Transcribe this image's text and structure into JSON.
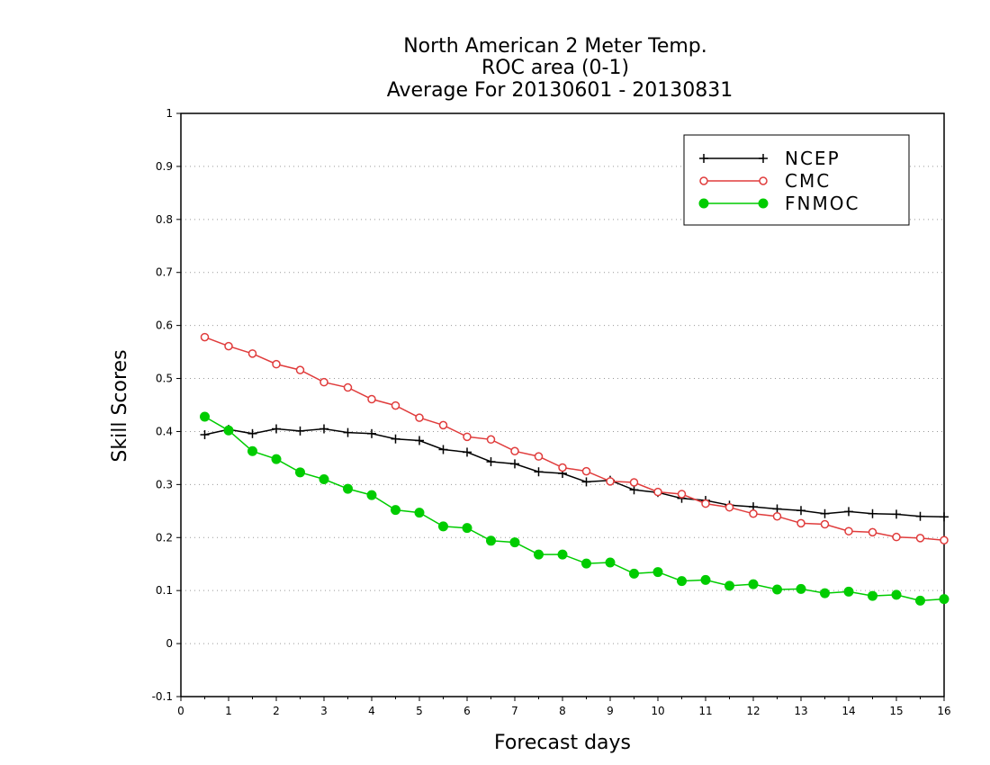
{
  "chart_data": {
    "type": "line",
    "title": [
      "North American 2 Meter Temp.",
      "ROC area (0-1)",
      "Average For 20130601 - 20130831"
    ],
    "xlabel": "Forecast days",
    "ylabel": "Skill Scores",
    "xlim": [
      0,
      16
    ],
    "ylim": [
      -0.1,
      1
    ],
    "xticks": [
      "0",
      "1",
      "2",
      "3",
      "4",
      "5",
      "6",
      "7",
      "8",
      "9",
      "10",
      "11",
      "12",
      "13",
      "14",
      "15",
      "16"
    ],
    "yticks": [
      "-0.1",
      "0",
      "0.1",
      "0.2",
      "0.3",
      "0.4",
      "0.5",
      "0.6",
      "0.7",
      "0.8",
      "0.9",
      "1"
    ],
    "grid": true,
    "legend_position": "top-right",
    "x": [
      0.5,
      1,
      1.5,
      2,
      2.5,
      3,
      3.5,
      4,
      4.5,
      5,
      5.5,
      6,
      6.5,
      7,
      7.5,
      8,
      8.5,
      9,
      9.5,
      10,
      10.5,
      11,
      11.5,
      12,
      12.5,
      13,
      13.5,
      14,
      14.5,
      15,
      15.5,
      16
    ],
    "series": [
      {
        "name": "NCEP",
        "color": "#000000",
        "marker": "plus",
        "values": [
          0.394,
          0.404,
          0.396,
          0.405,
          0.401,
          0.405,
          0.398,
          0.396,
          0.386,
          0.383,
          0.366,
          0.361,
          0.343,
          0.339,
          0.324,
          0.321,
          0.305,
          0.308,
          0.29,
          0.285,
          0.274,
          0.27,
          0.261,
          0.258,
          0.254,
          0.251,
          0.245,
          0.249,
          0.245,
          0.244,
          0.24,
          0.239
        ]
      },
      {
        "name": "CMC",
        "color": "#e03c3c",
        "marker": "open-circle",
        "values": [
          0.578,
          0.561,
          0.547,
          0.527,
          0.516,
          0.493,
          0.483,
          0.461,
          0.449,
          0.426,
          0.412,
          0.39,
          0.385,
          0.363,
          0.353,
          0.332,
          0.325,
          0.306,
          0.304,
          0.286,
          0.282,
          0.264,
          0.257,
          0.245,
          0.24,
          0.227,
          0.225,
          0.212,
          0.21,
          0.201,
          0.199,
          0.195
        ]
      },
      {
        "name": "FNMOC",
        "color": "#00cc00",
        "marker": "filled-circle",
        "values": [
          0.428,
          0.402,
          0.363,
          0.348,
          0.323,
          0.31,
          0.292,
          0.28,
          0.252,
          0.247,
          0.221,
          0.218,
          0.194,
          0.191,
          0.168,
          0.168,
          0.151,
          0.153,
          0.132,
          0.135,
          0.118,
          0.12,
          0.109,
          0.112,
          0.102,
          0.103,
          0.095,
          0.098,
          0.09,
          0.092,
          0.081,
          0.084
        ]
      }
    ]
  }
}
